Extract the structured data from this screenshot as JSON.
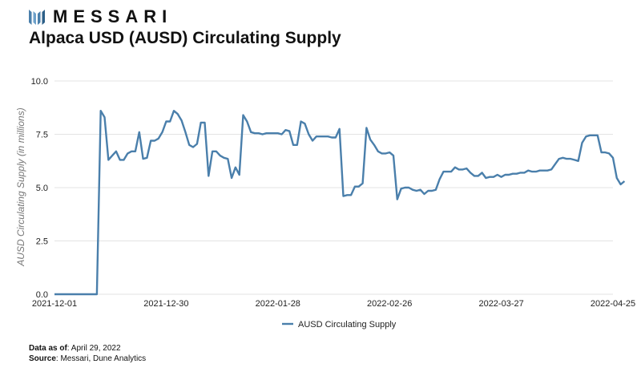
{
  "brand": {
    "name": "MESSARI"
  },
  "colors": {
    "series": "#4a7fab",
    "grid": "#e3e3e3",
    "tick": "#222222"
  },
  "chart_data": {
    "type": "line",
    "title": "Alpaca USD (AUSD) Circulating Supply",
    "ylabel": "AUSD Circulating Supply (in millions)",
    "xlabel": "",
    "ylim": [
      0,
      10
    ],
    "yticks": [
      0,
      2.5,
      5,
      7.5,
      10
    ],
    "ytick_labels": [
      "0.0",
      "2.5",
      "5.0",
      "7.5",
      "10.0"
    ],
    "x_ticks": [
      "2021-12-01",
      "2021-12-30",
      "2022-01-28",
      "2022-02-26",
      "2022-03-27",
      "2022-04-25"
    ],
    "x_start": "2021-12-01",
    "x_end": "2022-04-25",
    "grid": true,
    "legend": "bottom-center",
    "series": [
      {
        "name": "AUSD Circulating Supply",
        "points": [
          [
            "2021-12-01",
            0
          ],
          [
            "2021-12-02",
            0
          ],
          [
            "2021-12-03",
            0
          ],
          [
            "2021-12-04",
            0
          ],
          [
            "2021-12-05",
            0
          ],
          [
            "2021-12-06",
            0
          ],
          [
            "2021-12-07",
            0
          ],
          [
            "2021-12-08",
            0
          ],
          [
            "2021-12-09",
            0
          ],
          [
            "2021-12-10",
            0
          ],
          [
            "2021-12-11",
            0
          ],
          [
            "2021-12-12",
            0
          ],
          [
            "2021-12-13",
            8.6
          ],
          [
            "2021-12-14",
            8.3
          ],
          [
            "2021-12-15",
            6.3
          ],
          [
            "2021-12-16",
            6.5
          ],
          [
            "2021-12-17",
            6.7
          ],
          [
            "2021-12-18",
            6.3
          ],
          [
            "2021-12-19",
            6.3
          ],
          [
            "2021-12-20",
            6.6
          ],
          [
            "2021-12-21",
            6.7
          ],
          [
            "2021-12-22",
            6.7
          ],
          [
            "2021-12-23",
            7.6
          ],
          [
            "2021-12-24",
            6.35
          ],
          [
            "2021-12-25",
            6.4
          ],
          [
            "2021-12-26",
            7.2
          ],
          [
            "2021-12-27",
            7.2
          ],
          [
            "2021-12-28",
            7.3
          ],
          [
            "2021-12-29",
            7.6
          ],
          [
            "2021-12-30",
            8.1
          ],
          [
            "2021-12-31",
            8.1
          ],
          [
            "2022-01-01",
            8.6
          ],
          [
            "2022-01-02",
            8.45
          ],
          [
            "2022-01-03",
            8.15
          ],
          [
            "2022-01-04",
            7.6
          ],
          [
            "2022-01-05",
            7.0
          ],
          [
            "2022-01-06",
            6.9
          ],
          [
            "2022-01-07",
            7.05
          ],
          [
            "2022-01-08",
            8.05
          ],
          [
            "2022-01-09",
            8.05
          ],
          [
            "2022-01-10",
            5.55
          ],
          [
            "2022-01-11",
            6.7
          ],
          [
            "2022-01-12",
            6.7
          ],
          [
            "2022-01-13",
            6.5
          ],
          [
            "2022-01-14",
            6.4
          ],
          [
            "2022-01-15",
            6.35
          ],
          [
            "2022-01-16",
            5.45
          ],
          [
            "2022-01-17",
            5.95
          ],
          [
            "2022-01-18",
            5.6
          ],
          [
            "2022-01-19",
            8.4
          ],
          [
            "2022-01-20",
            8.1
          ],
          [
            "2022-01-21",
            7.6
          ],
          [
            "2022-01-22",
            7.55
          ],
          [
            "2022-01-23",
            7.55
          ],
          [
            "2022-01-24",
            7.5
          ],
          [
            "2022-01-25",
            7.55
          ],
          [
            "2022-01-26",
            7.55
          ],
          [
            "2022-01-27",
            7.55
          ],
          [
            "2022-01-28",
            7.55
          ],
          [
            "2022-01-29",
            7.5
          ],
          [
            "2022-01-30",
            7.7
          ],
          [
            "2022-01-31",
            7.65
          ],
          [
            "2022-02-01",
            7.0
          ],
          [
            "2022-02-02",
            7.0
          ],
          [
            "2022-02-03",
            8.1
          ],
          [
            "2022-02-04",
            8.0
          ],
          [
            "2022-02-05",
            7.5
          ],
          [
            "2022-02-06",
            7.2
          ],
          [
            "2022-02-07",
            7.4
          ],
          [
            "2022-02-08",
            7.4
          ],
          [
            "2022-02-09",
            7.4
          ],
          [
            "2022-02-10",
            7.4
          ],
          [
            "2022-02-11",
            7.35
          ],
          [
            "2022-02-12",
            7.35
          ],
          [
            "2022-02-13",
            7.75
          ],
          [
            "2022-02-14",
            4.6
          ],
          [
            "2022-02-15",
            4.65
          ],
          [
            "2022-02-16",
            4.65
          ],
          [
            "2022-02-17",
            5.05
          ],
          [
            "2022-02-18",
            5.05
          ],
          [
            "2022-02-19",
            5.2
          ],
          [
            "2022-02-20",
            7.8
          ],
          [
            "2022-02-21",
            7.25
          ],
          [
            "2022-02-22",
            7.0
          ],
          [
            "2022-02-23",
            6.7
          ],
          [
            "2022-02-24",
            6.6
          ],
          [
            "2022-02-25",
            6.6
          ],
          [
            "2022-02-26",
            6.65
          ],
          [
            "2022-02-27",
            6.5
          ],
          [
            "2022-02-28",
            4.45
          ],
          [
            "2022-03-01",
            4.95
          ],
          [
            "2022-03-02",
            5.0
          ],
          [
            "2022-03-03",
            5.0
          ],
          [
            "2022-03-04",
            4.9
          ],
          [
            "2022-03-05",
            4.85
          ],
          [
            "2022-03-06",
            4.9
          ],
          [
            "2022-03-07",
            4.7
          ],
          [
            "2022-03-08",
            4.85
          ],
          [
            "2022-03-09",
            4.85
          ],
          [
            "2022-03-10",
            4.9
          ],
          [
            "2022-03-11",
            5.4
          ],
          [
            "2022-03-12",
            5.75
          ],
          [
            "2022-03-13",
            5.75
          ],
          [
            "2022-03-14",
            5.75
          ],
          [
            "2022-03-15",
            5.95
          ],
          [
            "2022-03-16",
            5.85
          ],
          [
            "2022-03-17",
            5.85
          ],
          [
            "2022-03-18",
            5.9
          ],
          [
            "2022-03-19",
            5.7
          ],
          [
            "2022-03-20",
            5.55
          ],
          [
            "2022-03-21",
            5.55
          ],
          [
            "2022-03-22",
            5.7
          ],
          [
            "2022-03-23",
            5.45
          ],
          [
            "2022-03-24",
            5.5
          ],
          [
            "2022-03-25",
            5.5
          ],
          [
            "2022-03-26",
            5.6
          ],
          [
            "2022-03-27",
            5.5
          ],
          [
            "2022-03-28",
            5.6
          ],
          [
            "2022-03-29",
            5.6
          ],
          [
            "2022-03-30",
            5.65
          ],
          [
            "2022-03-31",
            5.65
          ],
          [
            "2022-04-01",
            5.7
          ],
          [
            "2022-04-02",
            5.7
          ],
          [
            "2022-04-03",
            5.8
          ],
          [
            "2022-04-04",
            5.75
          ],
          [
            "2022-04-05",
            5.75
          ],
          [
            "2022-04-06",
            5.8
          ],
          [
            "2022-04-07",
            5.8
          ],
          [
            "2022-04-08",
            5.8
          ],
          [
            "2022-04-09",
            5.85
          ],
          [
            "2022-04-10",
            6.1
          ],
          [
            "2022-04-11",
            6.35
          ],
          [
            "2022-04-12",
            6.4
          ],
          [
            "2022-04-13",
            6.35
          ],
          [
            "2022-04-14",
            6.35
          ],
          [
            "2022-04-15",
            6.3
          ],
          [
            "2022-04-16",
            6.25
          ],
          [
            "2022-04-17",
            7.1
          ],
          [
            "2022-04-18",
            7.4
          ],
          [
            "2022-04-19",
            7.45
          ],
          [
            "2022-04-20",
            7.45
          ],
          [
            "2022-04-21",
            7.45
          ],
          [
            "2022-04-22",
            6.65
          ],
          [
            "2022-04-23",
            6.65
          ],
          [
            "2022-04-24",
            6.6
          ],
          [
            "2022-04-25",
            6.4
          ],
          [
            "2022-04-26",
            5.45
          ],
          [
            "2022-04-27",
            5.15
          ],
          [
            "2022-04-28",
            5.3
          ]
        ]
      }
    ]
  },
  "footer": {
    "asof_label": "Data as of",
    "asof_value": ": April 29, 2022",
    "source_label": "Source",
    "source_value": ": Messari, Dune Analytics"
  }
}
